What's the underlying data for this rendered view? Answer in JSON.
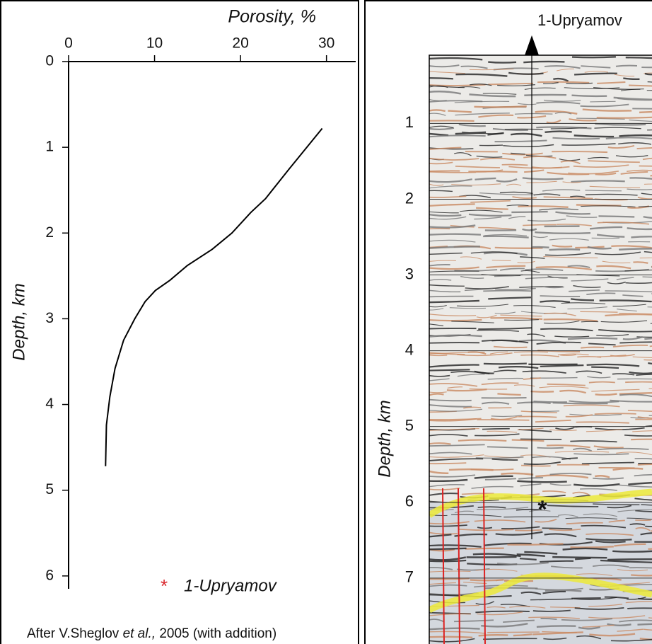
{
  "chart_data": {
    "type": "line",
    "title": "Porosity, %",
    "y_label": "Depth, km",
    "x": [
      29.5,
      25.6,
      22.9,
      21.2,
      19.0,
      16.7,
      13.8,
      11.8,
      10.1,
      8.9,
      7.7,
      6.4,
      5.4,
      4.8,
      4.4,
      4.3
    ],
    "values": [
      0.78,
      1.26,
      1.6,
      1.76,
      2.0,
      2.19,
      2.38,
      2.55,
      2.67,
      2.8,
      3.0,
      3.25,
      3.58,
      3.91,
      4.24,
      4.72
    ],
    "color": "#000000",
    "xlim": [
      0,
      33.4
    ],
    "xticks": [
      0,
      10,
      20,
      30
    ],
    "ylim": [
      0,
      6.15
    ],
    "yticks": [
      0,
      1,
      2,
      3,
      4,
      5,
      6
    ],
    "y_inverted": true
  },
  "annotation": {
    "symbol": "*",
    "text": "1-Upryamov",
    "color": "#d9262c"
  },
  "source_note": [
    "After V.Sheglov ",
    "et al.,",
    " 2005 (with addition)"
  ],
  "seismic_section": {
    "well_label": "1-Upryamov",
    "y_label": "Depth, km",
    "ylim": [
      0.1,
      7.87
    ],
    "yticks": [
      1,
      2,
      3,
      4,
      5,
      6,
      7
    ],
    "star": "*"
  }
}
